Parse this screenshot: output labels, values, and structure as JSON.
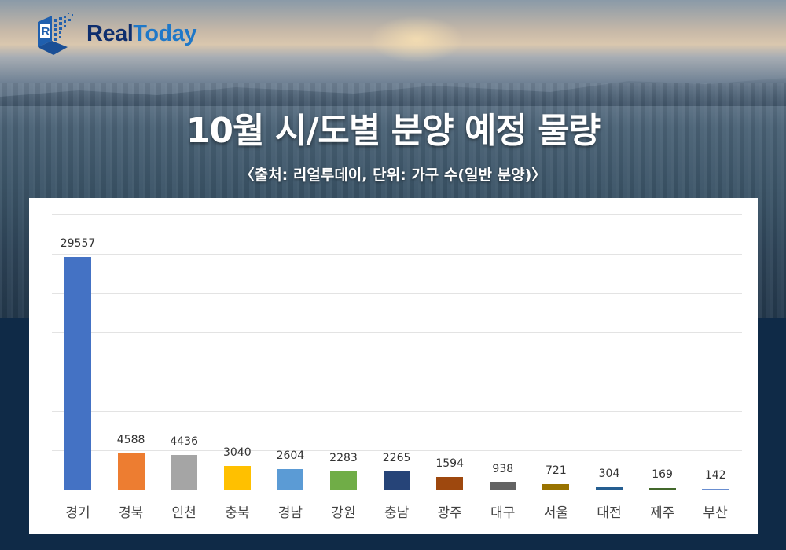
{
  "brand": {
    "name_part1": "Real",
    "name_part2": "Today",
    "logo_icon": "cube-r-logo-icon"
  },
  "header": {
    "title": "10월 시/도별 분양 예정 물량",
    "subtitle": "〈출처: 리얼투데이, 단위: 가구 수(일반 분양)〉"
  },
  "chart_data": {
    "type": "bar",
    "title": "10월 시/도별 분양 예정 물량",
    "subtitle": "〈출처: 리얼투데이, 단위: 가구 수(일반 분양)〉",
    "xlabel": "",
    "ylabel": "가구 수",
    "ylim": [
      0,
      35000
    ],
    "grid": true,
    "gridlines": [
      0,
      5000,
      10000,
      15000,
      20000,
      25000,
      30000,
      35000
    ],
    "y_axis_labels_visible": false,
    "legend": "none",
    "data_labels": true,
    "categories": [
      "경기",
      "경북",
      "인천",
      "충북",
      "경남",
      "강원",
      "충남",
      "광주",
      "대구",
      "서울",
      "대전",
      "제주",
      "부산"
    ],
    "values": [
      29557,
      4588,
      4436,
      3040,
      2604,
      2283,
      2265,
      1594,
      938,
      721,
      304,
      169,
      142
    ],
    "colors": [
      "#4472c4",
      "#ed7d31",
      "#a5a5a5",
      "#ffc000",
      "#5b9bd5",
      "#70ad47",
      "#264478",
      "#9e480e",
      "#636363",
      "#997300",
      "#255e91",
      "#43682b",
      "#698ed0"
    ]
  }
}
